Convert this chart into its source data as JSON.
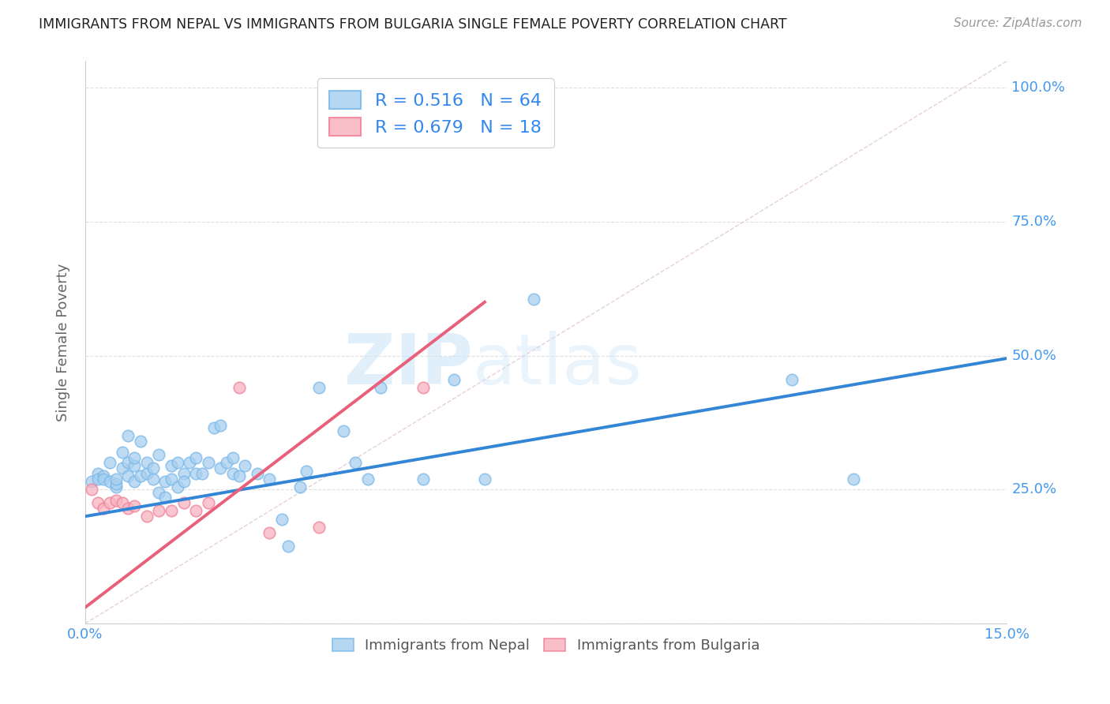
{
  "title": "IMMIGRANTS FROM NEPAL VS IMMIGRANTS FROM BULGARIA SINGLE FEMALE POVERTY CORRELATION CHART",
  "source": "Source: ZipAtlas.com",
  "ylabel": "Single Female Poverty",
  "xmin": 0.0,
  "xmax": 0.15,
  "ymin": 0.0,
  "ymax": 1.05,
  "nepal_R": 0.516,
  "nepal_N": 64,
  "bulgaria_R": 0.679,
  "bulgaria_N": 18,
  "nepal_color": "#a8d0f0",
  "nepal_edge_color": "#7ab8e8",
  "nepal_line_color": "#3385d6",
  "bulgaria_color": "#f8b4c0",
  "bulgaria_edge_color": "#f08098",
  "bulgaria_line_color": "#e8607a",
  "diagonal_color": "#cccccc",
  "nepal_scatter_x": [
    0.001,
    0.002,
    0.002,
    0.003,
    0.003,
    0.004,
    0.004,
    0.005,
    0.005,
    0.005,
    0.006,
    0.006,
    0.007,
    0.007,
    0.007,
    0.008,
    0.008,
    0.008,
    0.009,
    0.009,
    0.01,
    0.01,
    0.011,
    0.011,
    0.012,
    0.012,
    0.013,
    0.013,
    0.014,
    0.014,
    0.015,
    0.015,
    0.016,
    0.016,
    0.017,
    0.018,
    0.018,
    0.019,
    0.02,
    0.021,
    0.022,
    0.022,
    0.023,
    0.024,
    0.024,
    0.025,
    0.026,
    0.028,
    0.03,
    0.032,
    0.033,
    0.035,
    0.036,
    0.038,
    0.042,
    0.044,
    0.046,
    0.048,
    0.055,
    0.06,
    0.065,
    0.073,
    0.115,
    0.125
  ],
  "nepal_scatter_y": [
    0.265,
    0.28,
    0.27,
    0.275,
    0.27,
    0.3,
    0.265,
    0.255,
    0.26,
    0.27,
    0.29,
    0.32,
    0.35,
    0.275,
    0.3,
    0.265,
    0.295,
    0.31,
    0.275,
    0.34,
    0.28,
    0.3,
    0.27,
    0.29,
    0.245,
    0.315,
    0.265,
    0.235,
    0.295,
    0.27,
    0.255,
    0.3,
    0.28,
    0.265,
    0.3,
    0.28,
    0.31,
    0.28,
    0.3,
    0.365,
    0.37,
    0.29,
    0.3,
    0.28,
    0.31,
    0.275,
    0.295,
    0.28,
    0.27,
    0.195,
    0.145,
    0.255,
    0.285,
    0.44,
    0.36,
    0.3,
    0.27,
    0.44,
    0.27,
    0.455,
    0.27,
    0.605,
    0.455,
    0.27
  ],
  "nepal_line_x": [
    0.0,
    0.15
  ],
  "nepal_line_y": [
    0.2,
    0.495
  ],
  "bulgaria_scatter_x": [
    0.001,
    0.002,
    0.003,
    0.004,
    0.005,
    0.006,
    0.007,
    0.008,
    0.01,
    0.012,
    0.014,
    0.016,
    0.018,
    0.02,
    0.025,
    0.03,
    0.038,
    0.055
  ],
  "bulgaria_scatter_y": [
    0.25,
    0.225,
    0.215,
    0.225,
    0.23,
    0.225,
    0.215,
    0.22,
    0.2,
    0.21,
    0.21,
    0.225,
    0.21,
    0.225,
    0.44,
    0.17,
    0.18,
    0.44
  ],
  "bulgaria_line_x": [
    0.0,
    0.065
  ],
  "bulgaria_line_y": [
    0.03,
    0.6
  ],
  "watermark_line1": "ZIP",
  "watermark_line2": "atlas",
  "background_color": "#ffffff",
  "grid_color": "#e0e0e0"
}
